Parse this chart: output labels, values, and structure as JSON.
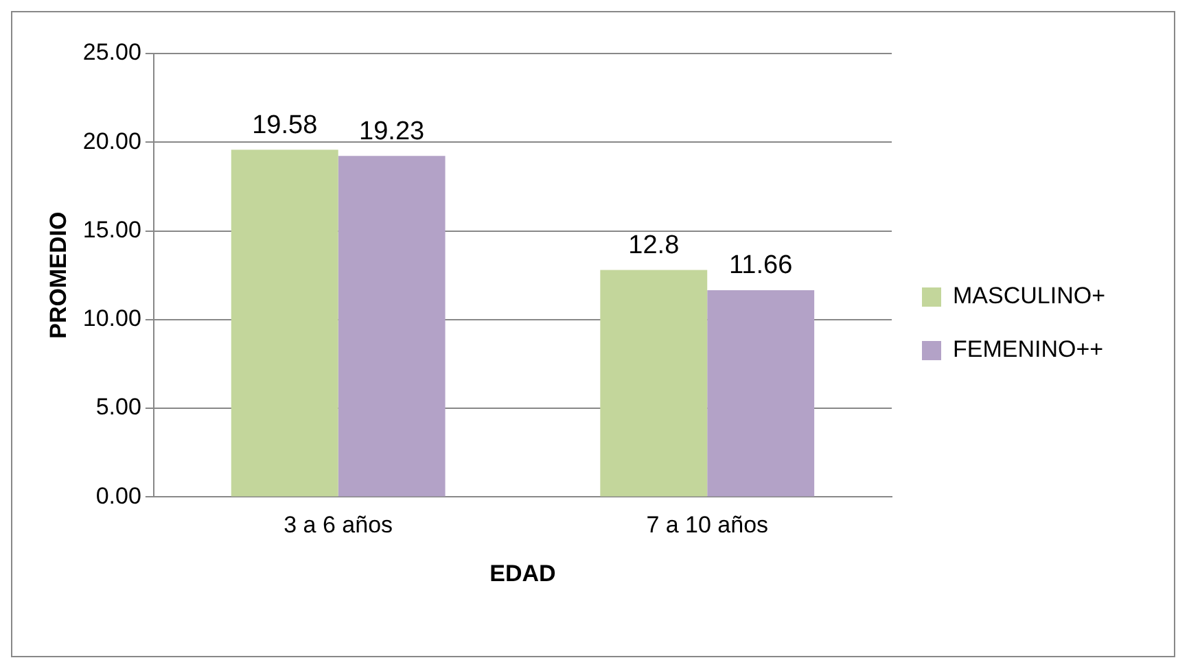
{
  "chart_data": {
    "type": "bar",
    "xlabel": "EDAD",
    "ylabel": "PROMEDIO",
    "categories": [
      "3 a 6 años",
      "7 a 10 años"
    ],
    "series": [
      {
        "name": "MASCULINO+",
        "color": "#c3d69b",
        "values": [
          19.58,
          12.8
        ]
      },
      {
        "name": "FEMENINO++",
        "color": "#b3a2c7",
        "values": [
          19.23,
          11.66
        ]
      }
    ],
    "ylim": [
      0,
      25
    ],
    "yticks": [
      {
        "value": 0,
        "label": "0.00"
      },
      {
        "value": 5,
        "label": "5.00"
      },
      {
        "value": 10,
        "label": "10.00"
      },
      {
        "value": 15,
        "label": "15.00"
      },
      {
        "value": 20,
        "label": "20.00"
      },
      {
        "value": 25,
        "label": "25.00"
      }
    ],
    "grid": "y",
    "legend": "right",
    "data_labels": true
  }
}
